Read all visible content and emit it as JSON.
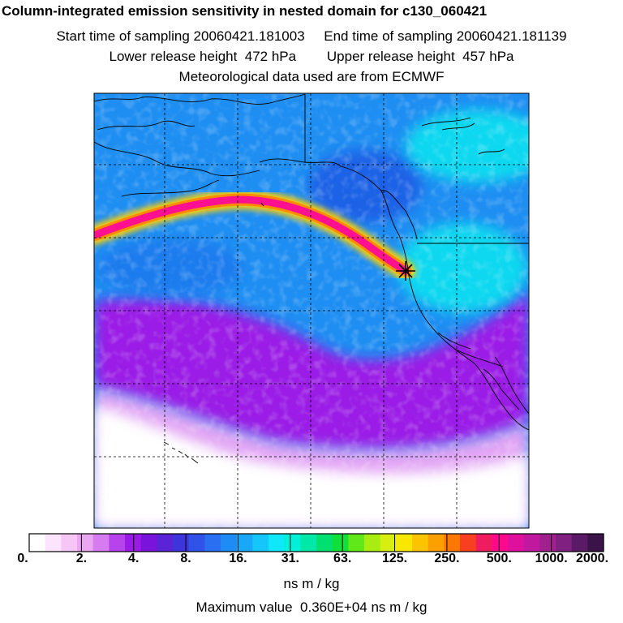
{
  "header": {
    "title": "Column-integrated emission sensitivity in nested domain for c130_060421",
    "sampling_line": "Start time of sampling 20060421.181003     End time of sampling 20060421.181139",
    "release_line": "Lower release height  472 hPa        Upper release height  457 hPa",
    "met_line": "Meteorological data used are from ECMWF"
  },
  "chart_data": {
    "type": "heatmap",
    "title": "Column-integrated emission sensitivity in nested domain for c130_060421",
    "colorbar": {
      "ticks": [
        "0.",
        "2.",
        "4.",
        "8.",
        "16.",
        "31.",
        "63.",
        "125.",
        "250.",
        "500.",
        "1000.",
        "2000."
      ],
      "tick_values": [
        0,
        2,
        4,
        8,
        16,
        31,
        63,
        125,
        250,
        500,
        1000,
        2000
      ],
      "colors": [
        "#ffffff",
        "#fce4fc",
        "#f6c6f6",
        "#eba6f2",
        "#d77cf0",
        "#b743ec",
        "#9a1ae6",
        "#7a14dc",
        "#5a24d6",
        "#3e34dc",
        "#2f52e8",
        "#2a6ef2",
        "#1f8cf6",
        "#19a8f8",
        "#14c6fa",
        "#0ee8f8",
        "#00f0d8",
        "#00e8a8",
        "#00e070",
        "#10e03a",
        "#60e818",
        "#a8ec10",
        "#d6ee10",
        "#f8e800",
        "#fcc400",
        "#fca000",
        "#fc7800",
        "#f84020",
        "#f01c60",
        "#ff0a8c",
        "#e0109e",
        "#c0189e",
        "#a0208e",
        "#802080",
        "#5a1a66",
        "#3a1448"
      ],
      "units": "ns m / kg"
    },
    "max_value_text": "Maximum value  0.360E+04 ns m / kg",
    "max_value": 3600,
    "release_point_marker": "star",
    "gridlines": "dashed"
  },
  "colors": {
    "trajectory_core": "#ff1090",
    "trajectory_edge": "#ffd000",
    "ocean_cyan": "#10d8f0",
    "ocean_blue": "#1e8ef2",
    "low_sensitivity_purple": "#9a1ae6",
    "zero_white": "#ffffff"
  }
}
